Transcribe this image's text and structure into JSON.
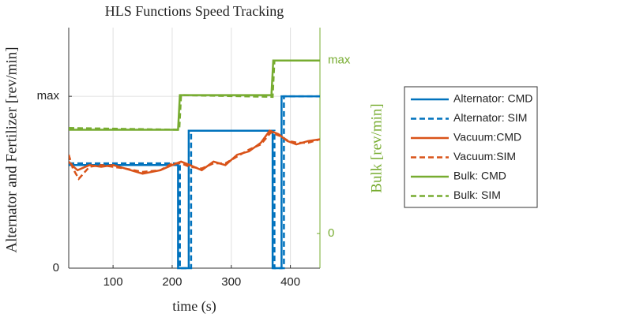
{
  "chart_data": {
    "type": "line",
    "title": "HLS Functions Speed Tracking",
    "xlabel": "time (s)",
    "ylabel": "Alternator and Fertilizer [rev/min]",
    "y2label": "Bulk [rev/min]",
    "xlim": [
      25,
      450
    ],
    "xticks": [
      100,
      200,
      300,
      400
    ],
    "ylim": [
      0,
      1.4
    ],
    "yticks": [
      0,
      {
        "value": 1,
        "label": "max"
      }
    ],
    "y2lim": [
      -0.2,
      1.19
    ],
    "y2ticks": [
      0,
      {
        "value": 1,
        "label": "max"
      }
    ],
    "y2color": "#77ac30",
    "grid": true,
    "legend": "outside-right",
    "series": [
      {
        "name": "Alternator: CMD",
        "color": "#0072bd",
        "style": "solid",
        "x": [
          25,
          210,
          210,
          228,
          228,
          370,
          370,
          385,
          385,
          450
        ],
        "values": [
          0.6,
          0.6,
          0,
          0,
          0.8,
          0.8,
          0,
          0,
          1,
          1
        ]
      },
      {
        "name": "Alternator: SIM",
        "color": "#0072bd",
        "style": "dashed",
        "x": [
          25,
          213,
          213,
          232,
          232,
          373,
          373,
          389,
          389,
          450
        ],
        "values": [
          0.61,
          0.61,
          0,
          0,
          0.8,
          0.8,
          0,
          0,
          1,
          1
        ]
      },
      {
        "name": "Vacuum:CMD",
        "color": "#d95319",
        "style": "solid",
        "x": [
          25,
          30,
          40,
          60,
          80,
          100,
          120,
          150,
          180,
          200,
          215,
          230,
          250,
          270,
          290,
          310,
          330,
          350,
          365,
          380,
          395,
          410,
          430,
          450
        ],
        "values": [
          0.62,
          0.6,
          0.57,
          0.6,
          0.59,
          0.6,
          0.58,
          0.55,
          0.57,
          0.6,
          0.62,
          0.6,
          0.57,
          0.62,
          0.6,
          0.66,
          0.68,
          0.73,
          0.8,
          0.78,
          0.74,
          0.72,
          0.74,
          0.75
        ]
      },
      {
        "name": "Vacuum:SIM",
        "color": "#d95319",
        "style": "dashed",
        "x": [
          25,
          32,
          42,
          60,
          80,
          100,
          120,
          150,
          180,
          200,
          215,
          230,
          250,
          270,
          290,
          310,
          330,
          350,
          367,
          382,
          397,
          412,
          430,
          450
        ],
        "values": [
          0.66,
          0.58,
          0.52,
          0.59,
          0.6,
          0.59,
          0.58,
          0.56,
          0.57,
          0.61,
          0.61,
          0.59,
          0.58,
          0.61,
          0.61,
          0.65,
          0.69,
          0.72,
          0.79,
          0.77,
          0.74,
          0.73,
          0.73,
          0.75
        ]
      },
      {
        "name": "Bulk: CMD",
        "color": "#77ac30",
        "style": "solid",
        "axis": "y2",
        "x": [
          25,
          210,
          213,
          368,
          371,
          450
        ],
        "values": [
          0.6,
          0.6,
          0.8,
          0.8,
          1,
          1
        ]
      },
      {
        "name": "Bulk: SIM",
        "color": "#77ac30",
        "style": "dashed",
        "axis": "y2",
        "x": [
          25,
          212,
          215,
          370,
          373,
          450
        ],
        "values": [
          0.61,
          0.6,
          0.8,
          0.79,
          1,
          1
        ]
      }
    ]
  }
}
